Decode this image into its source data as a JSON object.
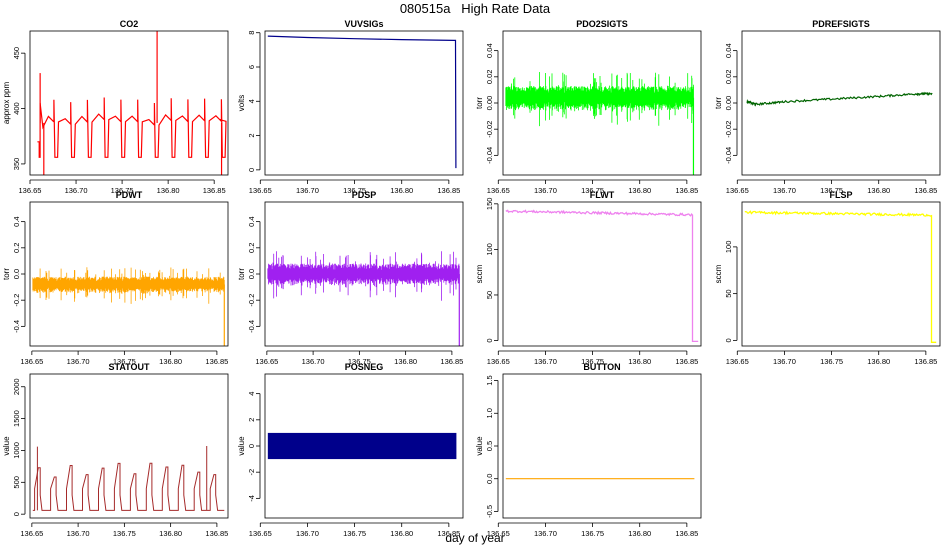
{
  "title": "080515a   High Rate Data",
  "xlabel": "day of year",
  "chart_data": [
    {
      "type": "line",
      "title": "CO2",
      "ylabel": "approx ppm",
      "color": "#ff0000",
      "xlim": [
        136.65,
        136.865
      ],
      "xticks": [
        136.65,
        136.7,
        136.75,
        136.8,
        136.85
      ],
      "xtick_labels": [
        "136.65",
        "136.70",
        "136.75",
        "136.80",
        "136.85"
      ],
      "ylim": [
        340,
        470
      ],
      "yticks": [
        350,
        400,
        450
      ],
      "ytick_labels": [
        "350",
        "400",
        "450"
      ],
      "series": [
        {
          "kind": "pulses",
          "base": 387,
          "from": 136.658,
          "to": 136.858,
          "pulse_values": [
            356,
            356,
            356,
            356,
            356,
            356,
            356,
            356,
            356,
            356,
            356
          ],
          "spikes": [
            {
              "x": 136.661,
              "y": 432
            },
            {
              "x": 136.788,
              "y": 470
            },
            {
              "x": 136.665,
              "y": 340
            },
            {
              "x": 136.858,
              "y": 340
            }
          ]
        }
      ]
    },
    {
      "type": "line",
      "title": "VUVSIGs",
      "ylabel": "volts",
      "color": "#00008b",
      "xlim": [
        136.655,
        136.865
      ],
      "xticks": [
        136.65,
        136.7,
        136.75,
        136.8,
        136.85
      ],
      "xtick_labels": [
        "136.65",
        "136.70",
        "136.75",
        "136.80",
        "136.85"
      ],
      "ylim": [
        -0.3,
        8.1
      ],
      "yticks": [
        0,
        2,
        4,
        6,
        8
      ],
      "ytick_labels": [
        "0",
        "2",
        "4",
        "6",
        "8"
      ],
      "series": [
        {
          "kind": "line",
          "x": [
            136.658,
            136.7,
            136.75,
            136.8,
            136.855,
            136.857,
            136.8575
          ],
          "y": [
            7.8,
            7.72,
            7.65,
            7.6,
            7.55,
            7.55,
            0.1
          ]
        }
      ]
    },
    {
      "type": "line",
      "title": "PDO2SIGTS",
      "ylabel": "torr",
      "color": "#00ff00",
      "xlim": [
        136.655,
        136.865
      ],
      "xticks": [
        136.65,
        136.7,
        136.75,
        136.8,
        136.85
      ],
      "xtick_labels": [
        "136.65",
        "136.70",
        "136.75",
        "136.80",
        "136.85"
      ],
      "ylim": [
        -0.055,
        0.055
      ],
      "yticks": [
        -0.04,
        -0.02,
        0.0,
        0.02,
        0.04
      ],
      "ytick_labels": [
        "-0.04",
        "-0.02",
        "0.00",
        "0.02",
        "0.04"
      ],
      "series": [
        {
          "kind": "noise",
          "from": 136.658,
          "to": 136.857,
          "center": 0.004,
          "amp": 0.009,
          "drop": -0.06
        }
      ]
    },
    {
      "type": "line",
      "title": "PDREFSIGTS",
      "ylabel": "torr",
      "color": "#006400",
      "xlim": [
        136.655,
        136.865
      ],
      "xticks": [
        136.65,
        136.7,
        136.75,
        136.8,
        136.85
      ],
      "xtick_labels": [
        "136.65",
        "136.70",
        "136.75",
        "136.80",
        "136.85"
      ],
      "ylim": [
        -0.055,
        0.055
      ],
      "yticks": [
        -0.04,
        -0.02,
        0.0,
        0.02,
        0.04
      ],
      "ytick_labels": [
        "-0.04",
        "-0.02",
        "0.00",
        "0.02",
        "0.04"
      ],
      "series": [
        {
          "kind": "drift",
          "x": [
            136.66,
            136.67,
            136.7,
            136.75,
            136.8,
            136.84,
            136.857
          ],
          "y": [
            0.001,
            -0.001,
            0.001,
            0.003,
            0.005,
            0.007,
            0.007
          ]
        }
      ]
    },
    {
      "type": "line",
      "title": "PDWT",
      "ylabel": "torr",
      "color": "#ffa500",
      "xlim": [
        136.648,
        136.862
      ],
      "xticks": [
        136.65,
        136.7,
        136.75,
        136.8,
        136.85
      ],
      "xtick_labels": [
        "136.65",
        "136.70",
        "136.75",
        "136.80",
        "136.85"
      ],
      "ylim": [
        -0.55,
        0.55
      ],
      "yticks": [
        -0.4,
        -0.2,
        0.0,
        0.2,
        0.4
      ],
      "ytick_labels": [
        "-0.4",
        "-0.2",
        "0.0",
        "0.2",
        "0.4"
      ],
      "series": [
        {
          "kind": "noise",
          "from": 136.651,
          "to": 136.858,
          "center": -0.08,
          "amp": 0.06,
          "drop": -0.55
        }
      ]
    },
    {
      "type": "line",
      "title": "PDSP",
      "ylabel": "torr",
      "color": "#a020f0",
      "xlim": [
        136.648,
        136.862
      ],
      "xticks": [
        136.65,
        136.7,
        136.75,
        136.8,
        136.85
      ],
      "xtick_labels": [
        "136.65",
        "136.70",
        "136.75",
        "136.80",
        "136.85"
      ],
      "ylim": [
        -0.55,
        0.55
      ],
      "yticks": [
        -0.4,
        -0.2,
        0.0,
        0.2,
        0.4
      ],
      "ytick_labels": [
        "-0.4",
        "-0.2",
        "0.0",
        "0.2",
        "0.4"
      ],
      "series": [
        {
          "kind": "noise",
          "from": 136.651,
          "to": 136.858,
          "center": 0.0,
          "amp": 0.08,
          "drop": -0.55
        }
      ]
    },
    {
      "type": "line",
      "title": "FLWT",
      "ylabel": "sccm",
      "color": "#ee82ee",
      "xlim": [
        136.655,
        136.865
      ],
      "xticks": [
        136.65,
        136.7,
        136.75,
        136.8,
        136.85
      ],
      "xtick_labels": [
        "136.65",
        "136.70",
        "136.75",
        "136.80",
        "136.85"
      ],
      "ylim": [
        -6,
        152
      ],
      "yticks": [
        0,
        50,
        100,
        150
      ],
      "ytick_labels": [
        "0",
        "50",
        "100",
        "150"
      ],
      "series": [
        {
          "kind": "flat",
          "from": 136.658,
          "to": 136.856,
          "y0": 142,
          "y1": 138,
          "amp": 1.2,
          "end_to": 136.862,
          "end_y": -1
        }
      ]
    },
    {
      "type": "line",
      "title": "FLSP",
      "ylabel": "sccm",
      "color": "#ffff00",
      "xlim": [
        136.655,
        136.865
      ],
      "xticks": [
        136.65,
        136.7,
        136.75,
        136.8,
        136.85
      ],
      "xtick_labels": [
        "136.65",
        "136.70",
        "136.75",
        "136.80",
        "136.85"
      ],
      "ylim": [
        -6,
        148
      ],
      "yticks": [
        0,
        50,
        100
      ],
      "ytick_labels": [
        "0",
        "50",
        "100"
      ],
      "series": [
        {
          "kind": "flat",
          "from": 136.658,
          "to": 136.856,
          "y0": 137,
          "y1": 134,
          "amp": 1.2,
          "end_to": 136.861,
          "end_y": -2
        }
      ]
    },
    {
      "type": "line",
      "title": "STATOUT",
      "ylabel": "value",
      "color": "#a52a2a",
      "xlim": [
        136.648,
        136.862
      ],
      "xticks": [
        136.65,
        136.7,
        136.75,
        136.8,
        136.85
      ],
      "xtick_labels": [
        "136.65",
        "136.70",
        "136.75",
        "136.80",
        "136.85"
      ],
      "ylim": [
        -60,
        2200
      ],
      "yticks": [
        0,
        500,
        1000,
        1500,
        2000
      ],
      "ytick_labels": [
        "0",
        "500",
        "1000",
        "1500",
        "2000"
      ],
      "series": [
        {
          "kind": "steps",
          "base": 60,
          "from": 136.651,
          "to": 136.858,
          "spikes": [
            {
              "x": 136.656,
              "y": 1060
            },
            {
              "x": 136.839,
              "y": 1070
            }
          ]
        }
      ]
    },
    {
      "type": "bar",
      "title": "POSNEG",
      "ylabel": "value",
      "color": "#00008b",
      "xlim": [
        136.655,
        136.865
      ],
      "xticks": [
        136.65,
        136.7,
        136.75,
        136.8,
        136.85
      ],
      "xtick_labels": [
        "136.65",
        "136.70",
        "136.75",
        "136.80",
        "136.85"
      ],
      "ylim": [
        -5.5,
        5.5
      ],
      "yticks": [
        -4,
        -2,
        0,
        2,
        4
      ],
      "ytick_labels": [
        "-4",
        "-2",
        "0",
        "2",
        "4"
      ],
      "series": [
        {
          "kind": "band",
          "from": 136.658,
          "to": 136.858,
          "ymin": -1,
          "ymax": 1
        }
      ]
    },
    {
      "type": "line",
      "title": "BUTTON",
      "ylabel": "value",
      "color": "#ffa500",
      "xlim": [
        136.655,
        136.865
      ],
      "xticks": [
        136.65,
        136.7,
        136.75,
        136.8,
        136.85
      ],
      "xtick_labels": [
        "136.65",
        "136.70",
        "136.75",
        "136.80",
        "136.85"
      ],
      "ylim": [
        -0.6,
        1.6
      ],
      "yticks": [
        -0.5,
        0.0,
        0.5,
        1.0,
        1.5
      ],
      "ytick_labels": [
        "-0.5",
        "0.0",
        "0.5",
        "1.0",
        "1.5"
      ],
      "series": [
        {
          "kind": "line",
          "x": [
            136.658,
            136.858
          ],
          "y": [
            0,
            0
          ]
        }
      ]
    }
  ]
}
